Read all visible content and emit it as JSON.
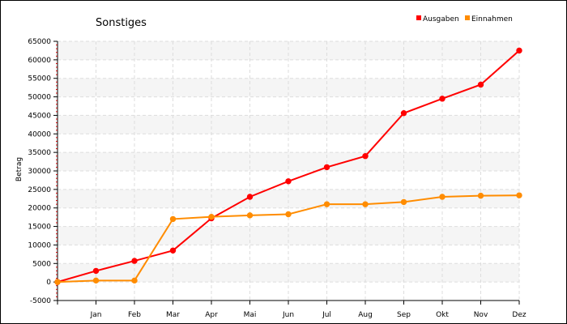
{
  "chart_data": {
    "type": "line",
    "title": "Sonstiges",
    "ylabel": "Betrag",
    "xlabel": "",
    "categories": [
      "",
      "Jan",
      "Feb",
      "Mar",
      "Apr",
      "Mai",
      "Jun",
      "Jul",
      "Aug",
      "Sep",
      "Okt",
      "Nov",
      "Dez"
    ],
    "ylim": [
      -5000,
      65000
    ],
    "yticks": [
      -5000,
      0,
      5000,
      10000,
      15000,
      20000,
      25000,
      30000,
      35000,
      40000,
      45000,
      50000,
      55000,
      60000,
      65000
    ],
    "grid": true,
    "legend_position": "top-right",
    "series": [
      {
        "name": "Ausgaben",
        "color": "#ff0000",
        "values": [
          0,
          3000,
          5700,
          8500,
          17200,
          23000,
          27200,
          31000,
          34000,
          45600,
          49500,
          53300,
          62500
        ]
      },
      {
        "name": "Einnahmen",
        "color": "#ff8c00",
        "values": [
          0,
          400,
          400,
          17000,
          17600,
          18000,
          18300,
          21000,
          21000,
          21600,
          23000,
          23300,
          23400
        ]
      }
    ]
  }
}
